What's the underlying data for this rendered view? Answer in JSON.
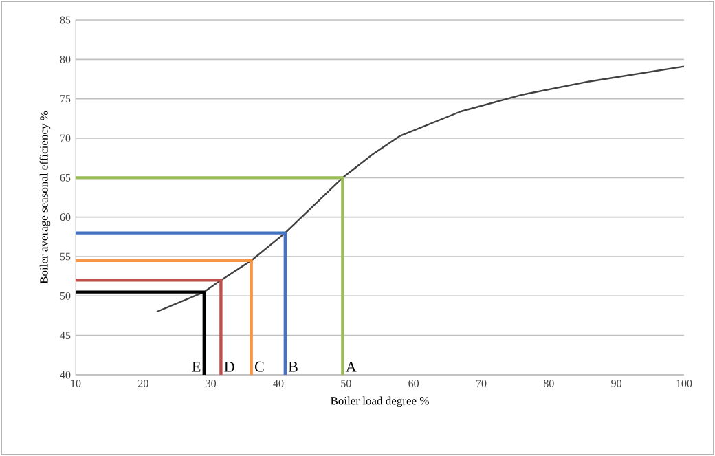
{
  "chart_data": {
    "type": "line",
    "xlabel": "Boiler load degree %",
    "ylabel": "Boiler average seasonal efficiency %",
    "xlim": [
      10,
      100
    ],
    "ylim": [
      40,
      85
    ],
    "xticks": [
      10,
      20,
      30,
      40,
      50,
      60,
      70,
      80,
      90,
      100
    ],
    "yticks": [
      40,
      45,
      50,
      55,
      60,
      65,
      70,
      75,
      80,
      85
    ],
    "grid": "y",
    "series": [
      {
        "color": "#404040",
        "x": [
          22,
          29,
          31.5,
          36,
          41,
          49.5,
          54,
          58,
          67,
          76,
          86,
          100
        ],
        "values": [
          48,
          50.5,
          52,
          54.5,
          58,
          65,
          68,
          70.3,
          73.4,
          75.5,
          77.2,
          79.1
        ]
      },
      {
        "name": "A",
        "color": "#9bbb59",
        "x": [
          10,
          49.5,
          49.5
        ],
        "values": [
          65,
          65,
          40
        ]
      },
      {
        "name": "B",
        "color": "#4472c4",
        "x": [
          10,
          41,
          41
        ],
        "values": [
          58,
          58,
          40
        ]
      },
      {
        "name": "C",
        "color": "#f79646",
        "x": [
          10,
          36,
          36
        ],
        "values": [
          54.5,
          54.5,
          40
        ]
      },
      {
        "name": "D",
        "color": "#c0504d",
        "x": [
          10,
          31.5,
          31.5
        ],
        "values": [
          52,
          52,
          40
        ]
      },
      {
        "name": "E",
        "color": "#000000",
        "x": [
          10,
          29,
          29
        ],
        "values": [
          50.5,
          50.5,
          40
        ]
      }
    ]
  }
}
